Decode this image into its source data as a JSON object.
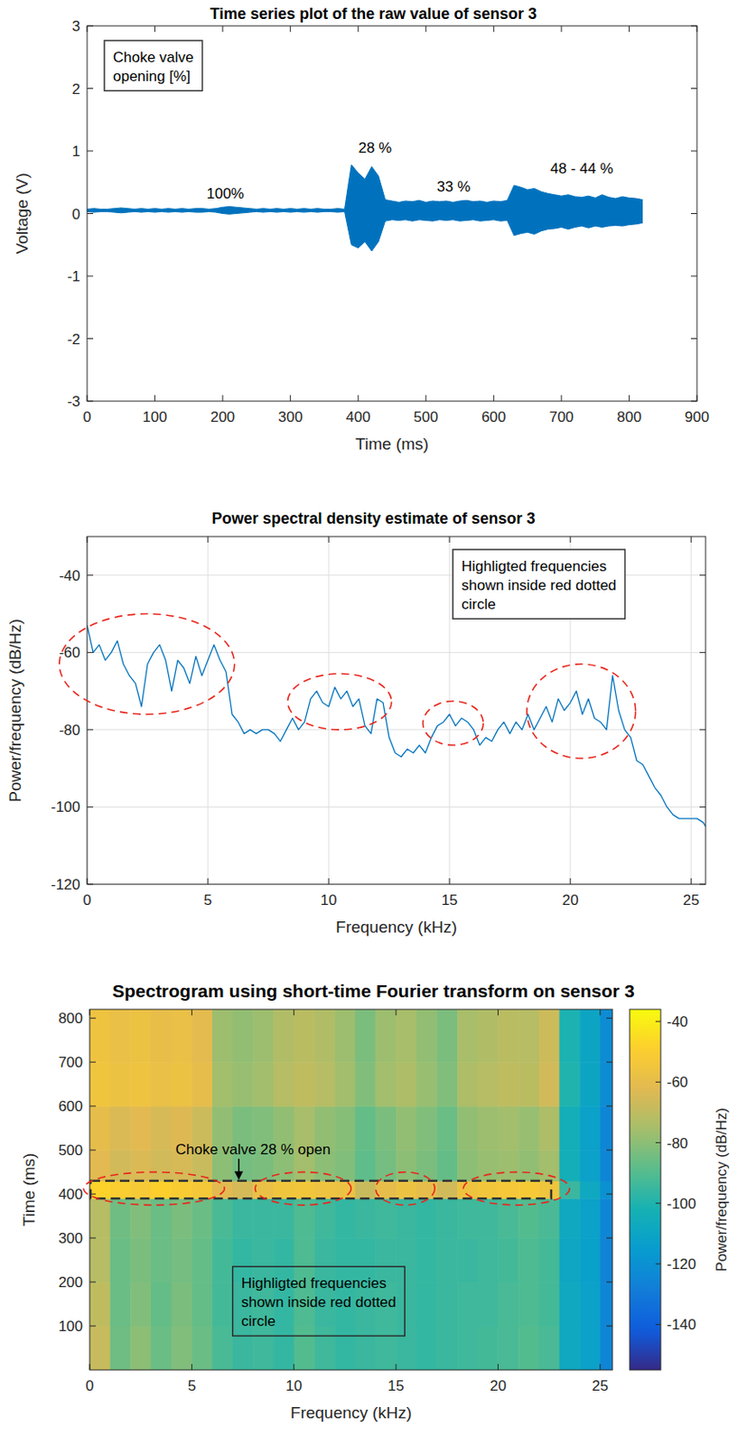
{
  "chart_data": [
    {
      "type": "area",
      "title": "Time series plot of the raw value of sensor 3",
      "x_label": "Time (ms)",
      "y_label": "Voltage (V)",
      "color": "#0072bd",
      "grid": false,
      "xlim": [
        0,
        900
      ],
      "xticks": [
        0,
        100,
        200,
        300,
        400,
        500,
        600,
        700,
        800,
        900
      ],
      "ylim": [
        -3,
        3
      ],
      "yticks": [
        -3,
        -2,
        -1,
        0,
        1,
        2,
        3
      ],
      "x": [
        0,
        10,
        20,
        30,
        40,
        50,
        60,
        70,
        80,
        90,
        100,
        110,
        120,
        130,
        140,
        150,
        160,
        170,
        180,
        190,
        200,
        210,
        220,
        230,
        240,
        250,
        260,
        270,
        280,
        290,
        300,
        310,
        320,
        330,
        340,
        350,
        360,
        370,
        380,
        390,
        400,
        410,
        420,
        430,
        440,
        450,
        460,
        470,
        480,
        490,
        500,
        510,
        520,
        530,
        540,
        550,
        560,
        570,
        580,
        590,
        600,
        610,
        620,
        630,
        640,
        650,
        660,
        670,
        680,
        690,
        700,
        710,
        720,
        730,
        740,
        750,
        760,
        770,
        780,
        790,
        800,
        810,
        820
      ],
      "series": [
        {
          "values": [
            0.07,
            0.08,
            0.07,
            0.07,
            0.08,
            0.09,
            0.08,
            0.07,
            0.08,
            0.07,
            0.08,
            0.07,
            0.08,
            0.07,
            0.08,
            0.07,
            0.08,
            0.08,
            0.07,
            0.08,
            0.1,
            0.11,
            0.1,
            0.09,
            0.08,
            0.07,
            0.08,
            0.07,
            0.08,
            0.07,
            0.08,
            0.07,
            0.08,
            0.07,
            0.08,
            0.07,
            0.07,
            0.08,
            0.07,
            0.78,
            0.65,
            0.55,
            0.75,
            0.6,
            0.22,
            0.2,
            0.18,
            0.2,
            0.19,
            0.21,
            0.18,
            0.2,
            0.19,
            0.2,
            0.18,
            0.2,
            0.21,
            0.19,
            0.2,
            0.18,
            0.2,
            0.19,
            0.21,
            0.45,
            0.42,
            0.38,
            0.4,
            0.35,
            0.32,
            0.3,
            0.28,
            0.3,
            0.27,
            0.26,
            0.28,
            0.25,
            0.3,
            0.26,
            0.24,
            0.27,
            0.25,
            0.24,
            0.22
          ]
        },
        {
          "values": [
            0.03,
            0.02,
            0.03,
            0.03,
            0.02,
            0.01,
            0.02,
            0.03,
            0.02,
            0.03,
            0.02,
            0.03,
            0.02,
            0.03,
            0.02,
            0.03,
            0.02,
            0.02,
            0.03,
            0.02,
            0.0,
            -0.01,
            0.0,
            0.01,
            0.02,
            0.03,
            0.02,
            0.03,
            0.02,
            0.03,
            0.02,
            0.03,
            0.02,
            0.03,
            0.02,
            0.03,
            0.03,
            0.02,
            0.03,
            -0.5,
            -0.55,
            -0.45,
            -0.6,
            -0.45,
            -0.12,
            -0.1,
            -0.11,
            -0.1,
            -0.12,
            -0.1,
            -0.11,
            -0.12,
            -0.1,
            -0.11,
            -0.1,
            -0.12,
            -0.11,
            -0.1,
            -0.12,
            -0.11,
            -0.1,
            -0.12,
            -0.11,
            -0.35,
            -0.32,
            -0.3,
            -0.33,
            -0.28,
            -0.25,
            -0.24,
            -0.22,
            -0.25,
            -0.22,
            -0.2,
            -0.23,
            -0.2,
            -0.22,
            -0.2,
            -0.19,
            -0.2,
            -0.18,
            -0.17,
            -0.15
          ]
        }
      ],
      "annotations": [
        {
          "text": "100%",
          "x": 204,
          "y": 0.33
        },
        {
          "text": "28 %",
          "x": 425,
          "y": 1.05
        },
        {
          "text": "33 %",
          "x": 541,
          "y": 0.44
        },
        {
          "text": "48 - 44 %",
          "x": 730,
          "y": 0.73
        }
      ],
      "note_box": {
        "lines": [
          "Choke valve",
          "opening [%]"
        ]
      }
    },
    {
      "type": "line",
      "title": "Power spectral density estimate of sensor 3",
      "x_label": "Frequency (kHz)",
      "y_label": "Power/frequency (dB/Hz)",
      "color": "#0072bd",
      "grid": true,
      "xlim": [
        0,
        25.6
      ],
      "xticks": [
        0,
        5,
        10,
        15,
        20,
        25
      ],
      "ylim": [
        -120,
        -30
      ],
      "yticks": [
        -120,
        -100,
        -80,
        -60,
        -40
      ],
      "x": [
        0,
        0.25,
        0.5,
        0.75,
        1,
        1.25,
        1.5,
        1.75,
        2,
        2.25,
        2.5,
        2.75,
        3,
        3.25,
        3.5,
        3.75,
        4,
        4.25,
        4.5,
        4.75,
        5,
        5.25,
        5.5,
        5.75,
        6,
        6.25,
        6.5,
        6.75,
        7,
        7.25,
        7.5,
        7.75,
        8,
        8.25,
        8.5,
        8.75,
        9,
        9.25,
        9.5,
        9.75,
        10,
        10.25,
        10.5,
        10.75,
        11,
        11.25,
        11.5,
        11.75,
        12,
        12.25,
        12.5,
        12.75,
        13,
        13.25,
        13.5,
        13.75,
        14,
        14.25,
        14.5,
        14.75,
        15,
        15.25,
        15.5,
        15.75,
        16,
        16.25,
        16.5,
        16.75,
        17,
        17.25,
        17.5,
        17.75,
        18,
        18.25,
        18.5,
        18.75,
        19,
        19.25,
        19.5,
        19.75,
        20,
        20.25,
        20.5,
        20.75,
        21,
        21.25,
        21.5,
        21.75,
        22,
        22.25,
        22.5,
        22.75,
        23,
        23.25,
        23.5,
        23.75,
        24,
        24.25,
        24.5,
        24.75,
        25,
        25.25,
        25.5,
        25.6
      ],
      "values": [
        -53,
        -60,
        -58,
        -62,
        -60,
        -57,
        -63,
        -66,
        -68,
        -74,
        -63,
        -60,
        -58,
        -62,
        -70,
        -62,
        -64,
        -68,
        -61,
        -66,
        -62,
        -58,
        -62,
        -65,
        -76,
        -78,
        -81,
        -80,
        -81,
        -80,
        -80,
        -81,
        -83,
        -80,
        -77,
        -80,
        -78,
        -72,
        -70,
        -73,
        -74,
        -69,
        -72,
        -70,
        -74,
        -72,
        -79,
        -81,
        -72,
        -73,
        -82,
        -86,
        -87,
        -85,
        -86,
        -84,
        -86,
        -82,
        -79,
        -78,
        -76,
        -79,
        -77,
        -78,
        -80,
        -84,
        -82,
        -83,
        -80,
        -78,
        -81,
        -78,
        -80,
        -76,
        -80,
        -77,
        -74,
        -78,
        -72,
        -75,
        -73,
        -70,
        -76,
        -72,
        -77,
        -78,
        -80,
        -66,
        -75,
        -80,
        -82,
        -88,
        -89,
        -92,
        -95,
        -97,
        -100,
        -102,
        -103,
        -103,
        -103,
        -103,
        -104,
        -105
      ],
      "highlights": [
        {
          "x": [
            -1.15,
            6.1
          ],
          "y": [
            -76,
            -50
          ]
        },
        {
          "x": [
            8.3,
            12.6
          ],
          "y": [
            -80,
            -65.5
          ]
        },
        {
          "x": [
            13.9,
            16.4
          ],
          "y": [
            -84,
            -72.6
          ]
        },
        {
          "x": [
            18.2,
            22.7
          ],
          "y": [
            -87.4,
            -63
          ]
        }
      ],
      "note_box": {
        "lines": [
          "Highligted frequencies",
          "shown inside red dotted",
          "circle"
        ]
      }
    },
    {
      "type": "heatmap",
      "title": "Spectrogram using short-time Fourier transform on sensor 3",
      "x_label": "Frequency (kHz)",
      "y_label": "Time (ms)",
      "xlim": [
        0,
        25.6
      ],
      "xticks": [
        0,
        5,
        10,
        15,
        20,
        25
      ],
      "ylim": [
        0,
        820
      ],
      "yticks": [
        100,
        200,
        300,
        400,
        500,
        600,
        700,
        800
      ],
      "x_edges": [
        0,
        1,
        2,
        3,
        4,
        5,
        6,
        7,
        8,
        9,
        10,
        11,
        12,
        13,
        14,
        15,
        16,
        17,
        18,
        19,
        20,
        21,
        22,
        23,
        24,
        25,
        25.6
      ],
      "y_edges": [
        0,
        100,
        200,
        300,
        390,
        430,
        500,
        600,
        700,
        820
      ],
      "cells": [
        [
          -68,
          -85,
          -80,
          -86,
          -82,
          -86,
          -92,
          -95,
          -94,
          -96,
          -90,
          -94,
          -96,
          -95,
          -94,
          -95,
          -96,
          -95,
          -94,
          -93,
          -92,
          -90,
          -92,
          -108,
          -112,
          -125
        ],
        [
          -70,
          -86,
          -82,
          -87,
          -83,
          -87,
          -93,
          -95,
          -94,
          -96,
          -91,
          -95,
          -96,
          -95,
          -94,
          -95,
          -96,
          -95,
          -94,
          -94,
          -92,
          -91,
          -93,
          -108,
          -112,
          -125
        ],
        [
          -72,
          -86,
          -83,
          -86,
          -84,
          -87,
          -93,
          -96,
          -95,
          -96,
          -91,
          -95,
          -96,
          -96,
          -95,
          -95,
          -96,
          -95,
          -95,
          -94,
          -93,
          -91,
          -93,
          -109,
          -113,
          -126
        ],
        [
          -72,
          -85,
          -82,
          -86,
          -83,
          -86,
          -92,
          -95,
          -95,
          -95,
          -91,
          -94,
          -96,
          -95,
          -94,
          -95,
          -96,
          -95,
          -94,
          -94,
          -92,
          -90,
          -92,
          -108,
          -112,
          -125
        ],
        [
          -48,
          -50,
          -52,
          -49,
          -51,
          -53,
          -62,
          -65,
          -58,
          -55,
          -54,
          -56,
          -57,
          -68,
          -60,
          -57,
          -60,
          -66,
          -56,
          -54,
          -53,
          -52,
          -55,
          -95,
          -108,
          -120
        ],
        [
          -62,
          -66,
          -64,
          -66,
          -65,
          -68,
          -80,
          -84,
          -83,
          -80,
          -76,
          -80,
          -82,
          -88,
          -84,
          -80,
          -83,
          -87,
          -80,
          -78,
          -77,
          -79,
          -76,
          -104,
          -112,
          -125
        ],
        [
          -60,
          -64,
          -62,
          -65,
          -63,
          -67,
          -79,
          -83,
          -82,
          -79,
          -75,
          -79,
          -81,
          -87,
          -83,
          -79,
          -82,
          -86,
          -79,
          -77,
          -76,
          -78,
          -74,
          -104,
          -112,
          -125
        ],
        [
          -55,
          -57,
          -56,
          -58,
          -57,
          -60,
          -76,
          -78,
          -76,
          -72,
          -70,
          -72,
          -76,
          -82,
          -76,
          -74,
          -78,
          -82,
          -74,
          -72,
          -70,
          -71,
          -66,
          -100,
          -110,
          -122
        ],
        [
          -56,
          -58,
          -57,
          -59,
          -58,
          -61,
          -77,
          -79,
          -77,
          -73,
          -71,
          -73,
          -77,
          -83,
          -77,
          -75,
          -79,
          -83,
          -75,
          -73,
          -71,
          -72,
          -67,
          -101,
          -110,
          -122
        ]
      ],
      "colorbar": {
        "label": "Power/frequency (dB/Hz)",
        "range": [
          -155,
          -36
        ],
        "ticks": [
          -40,
          -60,
          -80,
          -100,
          -120,
          -140
        ]
      },
      "annotations": [
        {
          "text": "Choke valve 28 % open",
          "x": 8.0,
          "y": 490,
          "arrow_to": [
            7.3,
            432
          ]
        }
      ],
      "marked_band": {
        "x": [
          0,
          22.6
        ],
        "y": [
          390,
          430
        ]
      },
      "highlights": [
        {
          "x": [
            -0.3,
            6.6
          ],
          "y": [
            375,
            450
          ]
        },
        {
          "x": [
            8.1,
            12.8
          ],
          "y": [
            375,
            450
          ]
        },
        {
          "x": [
            14.0,
            16.9
          ],
          "y": [
            375,
            450
          ]
        },
        {
          "x": [
            18.3,
            23.5
          ],
          "y": [
            375,
            450
          ]
        }
      ],
      "note_box": {
        "lines": [
          "Highligted frequencies",
          "shown inside red dotted",
          "circle"
        ]
      }
    }
  ]
}
